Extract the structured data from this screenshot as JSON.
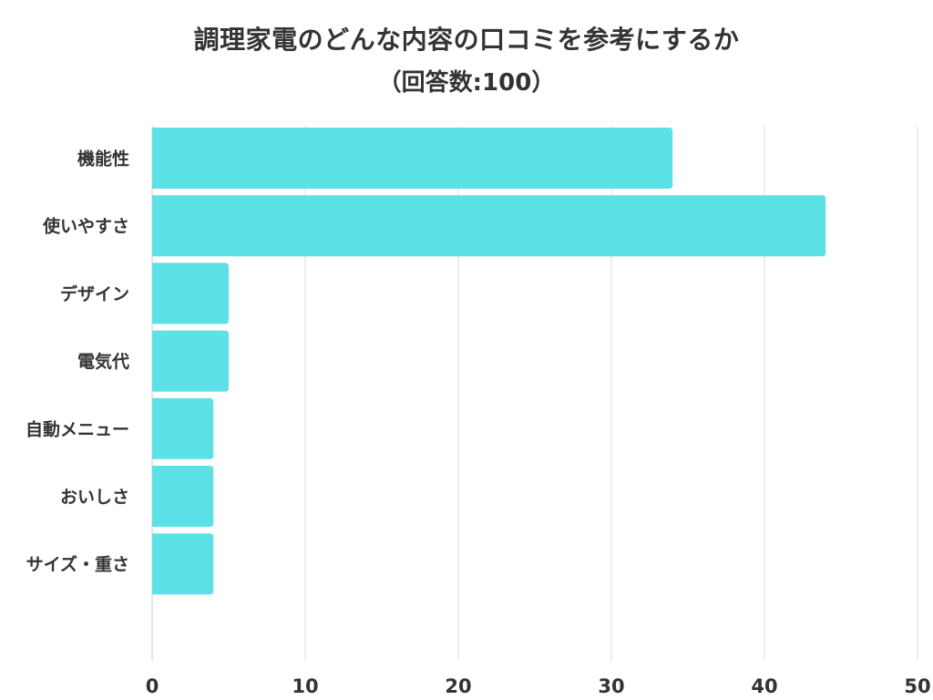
{
  "title": "調理家電のどんな内容の口コミを参考にするか",
  "subtitle": "（回答数:100）",
  "chart_data": {
    "type": "bar",
    "orientation": "horizontal",
    "title": "調理家電のどんな内容の口コミを参考にするか",
    "subtitle": "（回答数:100）",
    "categories": [
      "機能性",
      "使いやすさ",
      "デザイン",
      "電気代",
      "自動メニュー",
      "おいしさ",
      "サイズ・重さ"
    ],
    "values": [
      34,
      44,
      5,
      5,
      4,
      4,
      4
    ],
    "xlim": [
      0,
      50
    ],
    "xticks": [
      0,
      10,
      20,
      30,
      40,
      50
    ],
    "xlabel": "",
    "ylabel": "",
    "grid": true,
    "bar_color": "#5ce1e6",
    "grid_color": "#dddddd"
  }
}
